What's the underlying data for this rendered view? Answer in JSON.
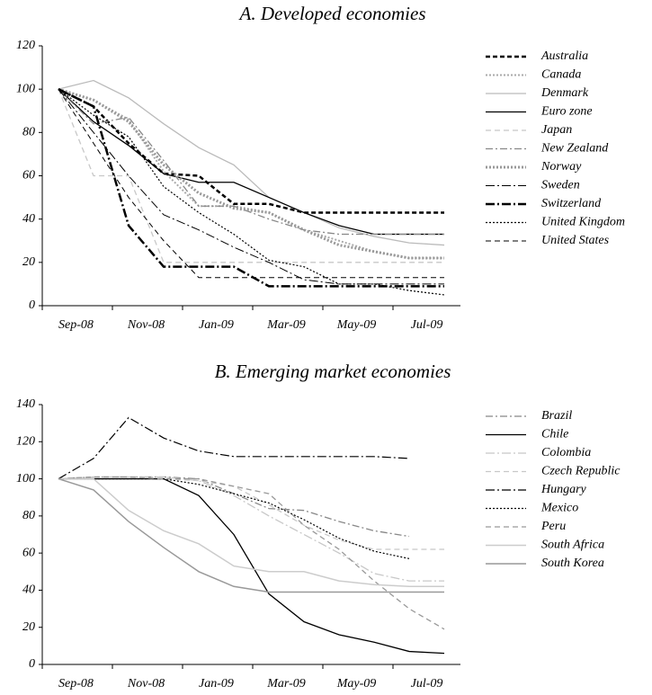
{
  "chart_data": [
    {
      "type": "line",
      "title": "A. Developed economies",
      "categories": [
        "Sep-08",
        null,
        "Nov-08",
        null,
        "Jan-09",
        null,
        "Mar-09",
        null,
        "May-09",
        null,
        "Jul-09",
        null
      ],
      "ylim": [
        0,
        120
      ],
      "yticks": [
        0,
        20,
        40,
        60,
        80,
        100,
        120
      ],
      "series": [
        {
          "name": "Australia",
          "color": "#000000",
          "dash": "5,3",
          "width": 2.5,
          "values": [
            100,
            92,
            75,
            61,
            60,
            47,
            47,
            43,
            43,
            43,
            43,
            43
          ]
        },
        {
          "name": "Canada",
          "color": "#aaaaaa",
          "dash": "2,2",
          "width": 2,
          "values": [
            100,
            95,
            86,
            62,
            46,
            46,
            43,
            35,
            30,
            25,
            22,
            22
          ]
        },
        {
          "name": "Denmark",
          "color": "#bbbbbb",
          "dash": "",
          "width": 1.3,
          "values": [
            100,
            104,
            96,
            84,
            73,
            65,
            50,
            43,
            36,
            32,
            29,
            28
          ]
        },
        {
          "name": "Euro zone",
          "color": "#000000",
          "dash": "",
          "width": 1.3,
          "values": [
            100,
            85,
            74,
            61,
            57,
            57,
            50,
            43,
            37,
            33,
            33,
            33
          ]
        },
        {
          "name": "Japan",
          "color": "#c8c8c8",
          "dash": "6,4",
          "width": 1.3,
          "values": [
            100,
            60,
            60,
            20,
            20,
            20,
            20,
            20,
            20,
            20,
            20,
            20
          ]
        },
        {
          "name": "New Zealand",
          "color": "#888888",
          "dash": "8,3,2,3",
          "width": 1.3,
          "values": [
            100,
            84,
            87,
            67,
            46,
            46,
            40,
            35,
            33,
            33,
            33,
            33
          ]
        },
        {
          "name": "Norway",
          "color": "#999999",
          "dash": "2,2",
          "width": 3,
          "values": [
            100,
            95,
            85,
            65,
            52,
            45,
            43,
            35,
            28,
            25,
            22,
            22
          ]
        },
        {
          "name": "Sweden",
          "color": "#000000",
          "dash": "10,3,2,3",
          "width": 1,
          "values": [
            100,
            80,
            60,
            42,
            35,
            27,
            20,
            12,
            10,
            10,
            10,
            10
          ]
        },
        {
          "name": "Switzerland",
          "color": "#000000",
          "dash": "10,3,2,3",
          "width": 2.5,
          "values": [
            100,
            92,
            37,
            18,
            18,
            18,
            9,
            9,
            9,
            9,
            9,
            9
          ]
        },
        {
          "name": "United Kingdom",
          "color": "#000000",
          "dash": "2,2",
          "width": 1.2,
          "values": [
            100,
            88,
            78,
            55,
            43,
            33,
            21,
            18,
            10,
            10,
            7,
            5
          ]
        },
        {
          "name": "United States",
          "color": "#000000",
          "dash": "6,4",
          "width": 1,
          "values": [
            100,
            75,
            50,
            30,
            13,
            13,
            13,
            13,
            13,
            13,
            13,
            13
          ]
        }
      ]
    },
    {
      "type": "line",
      "title": "B. Emerging market economies",
      "categories": [
        "Sep-08",
        null,
        "Nov-08",
        null,
        "Jan-09",
        null,
        "Mar-09",
        null,
        "May-09",
        null,
        "Jul-09",
        null
      ],
      "ylim": [
        0,
        140
      ],
      "yticks": [
        0,
        20,
        40,
        60,
        80,
        100,
        120,
        140
      ],
      "series": [
        {
          "name": "Brazil",
          "color": "#888888",
          "dash": "8,3,2,3",
          "width": 1.3,
          "values": [
            100,
            101,
            101,
            101,
            100,
            92,
            84,
            83,
            77,
            72,
            69,
            null
          ]
        },
        {
          "name": "Chile",
          "color": "#000000",
          "dash": "",
          "width": 1.3,
          "values": [
            100,
            100,
            100,
            100,
            91,
            70,
            38,
            23,
            16,
            12,
            7,
            6
          ]
        },
        {
          "name": "Colombia",
          "color": "#c8c8c8",
          "dash": "10,3,2,3",
          "width": 1.3,
          "values": [
            100,
            101,
            101,
            101,
            99,
            91,
            80,
            70,
            60,
            49,
            45,
            45
          ]
        },
        {
          "name": "Czech Republic",
          "color": "#c8c8c8",
          "dash": "6,4",
          "width": 1.3,
          "values": [
            100,
            101,
            101,
            100,
            99,
            96,
            86,
            75,
            67,
            62,
            62,
            62
          ]
        },
        {
          "name": "Hungary",
          "color": "#000000",
          "dash": "10,3,2,3",
          "width": 1.2,
          "values": [
            100,
            111,
            133,
            122,
            115,
            112,
            112,
            112,
            112,
            112,
            111,
            null
          ]
        },
        {
          "name": "Mexico",
          "color": "#000000",
          "dash": "2,2",
          "width": 1.2,
          "values": [
            100,
            100,
            100,
            100,
            97,
            92,
            87,
            78,
            68,
            61,
            57,
            null
          ]
        },
        {
          "name": "Peru",
          "color": "#999999",
          "dash": "6,4",
          "width": 1.3,
          "values": [
            100,
            101,
            101,
            100,
            100,
            96,
            92,
            75,
            62,
            45,
            30,
            19
          ]
        },
        {
          "name": "South Africa",
          "color": "#cccccc",
          "dash": "",
          "width": 1.5,
          "values": [
            100,
            100,
            83,
            72,
            65,
            53,
            50,
            50,
            45,
            43,
            42,
            42
          ]
        },
        {
          "name": "South Korea",
          "color": "#999999",
          "dash": "",
          "width": 1.5,
          "values": [
            100,
            94,
            77,
            63,
            50,
            42,
            39,
            39,
            39,
            39,
            39,
            39
          ]
        }
      ]
    }
  ]
}
